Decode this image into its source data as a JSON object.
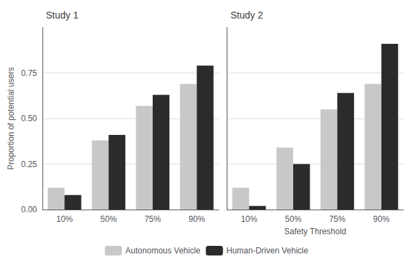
{
  "chart_data": [
    {
      "type": "bar",
      "title": "Study 1",
      "categories": [
        "10%",
        "50%",
        "75%",
        "90%"
      ],
      "series": [
        {
          "name": "Autonomous Vehicle",
          "color": "#c8c8c8",
          "values": [
            0.12,
            0.38,
            0.57,
            0.69
          ]
        },
        {
          "name": "Human-Driven Vehicle",
          "color": "#2b2b2b",
          "values": [
            0.08,
            0.41,
            0.63,
            0.79
          ]
        }
      ],
      "ylabel": "Proportion of potential users",
      "ylim": [
        0.0,
        1.0
      ],
      "yticks": [
        {
          "value": 0.0,
          "label": "0.00"
        },
        {
          "value": 0.25,
          "label": "0.25"
        },
        {
          "value": 0.5,
          "label": "0.50"
        },
        {
          "value": 0.75,
          "label": "0.75"
        }
      ],
      "grid": true,
      "legend": "bottom"
    },
    {
      "type": "bar",
      "title": "Study 2",
      "categories": [
        "10%",
        "50%",
        "75%",
        "90%"
      ],
      "series": [
        {
          "name": "Autonomous Vehicle",
          "color": "#c8c8c8",
          "values": [
            0.12,
            0.34,
            0.55,
            0.69
          ]
        },
        {
          "name": "Human-Driven Vehicle",
          "color": "#2b2b2b",
          "values": [
            0.02,
            0.25,
            0.64,
            0.91
          ]
        }
      ],
      "xlabel": "Safety Threshold",
      "ylim": [
        0.0,
        1.0
      ],
      "yticks": [
        0.0,
        0.25,
        0.5,
        0.75
      ],
      "tick_labels": "x",
      "grid": true,
      "legend": "bottom"
    }
  ]
}
